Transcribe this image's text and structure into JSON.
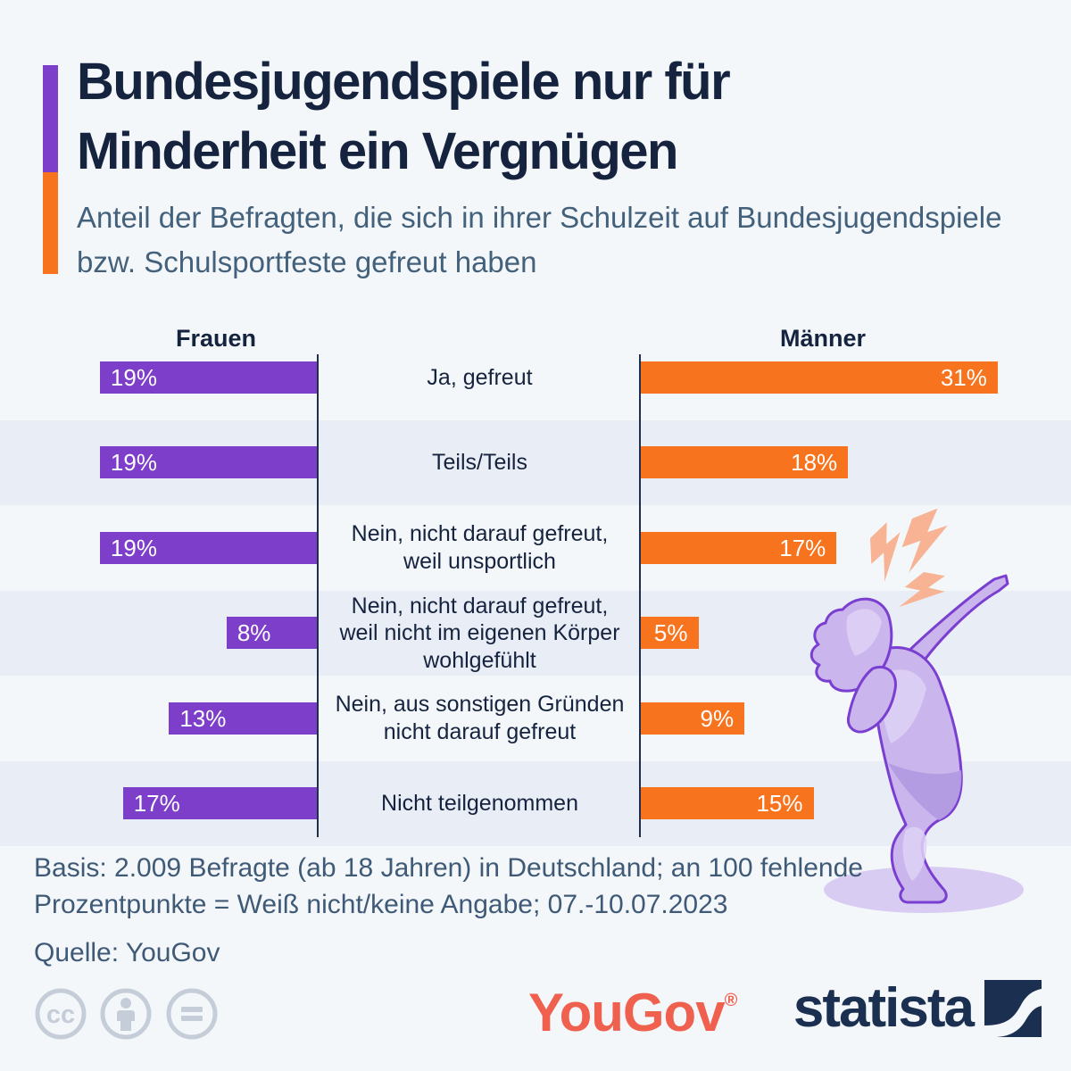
{
  "header": {
    "title": "Bundesjugendspiele nur für Minderheit ein Vergnügen",
    "subtitle": "Anteil der Befragten, die sich in ihrer Schulzeit auf Bundesjugendspiele bzw. Schulsportfeste gefreut haben"
  },
  "chart_data": {
    "type": "bar",
    "orientation": "horizontal-diverging",
    "categories": [
      "Ja, gefreut",
      "Teils/Teils",
      "Nein, nicht darauf gefreut, weil unsportlich",
      "Nein, nicht darauf gefreut, weil nicht im eigenen Körper wohlgefühlt",
      "Nein, aus sonstigen Gründen nicht darauf gefreut",
      "Nicht teilgenommen"
    ],
    "series": [
      {
        "name": "Frauen",
        "color": "#7d3ec9",
        "values": [
          19,
          19,
          19,
          8,
          13,
          17
        ]
      },
      {
        "name": "Männer",
        "color": "#f8731d",
        "values": [
          31,
          18,
          17,
          5,
          9,
          15
        ]
      }
    ],
    "unit": "%",
    "value_labels": "inside-bar-end",
    "row_stripes": [
      "#f4f7fa",
      "#e9edf6"
    ]
  },
  "footer": {
    "basis": "Basis: 2.009 Befragte (ab 18 Jahren) in Deutschland; an 100 fehlende Prozentpunkte = Weiß nicht/keine Angabe; 07.-10.07.2023",
    "quelle": "Quelle: YouGov"
  },
  "logos": {
    "license_icons": [
      "cc-icon",
      "attribution-person-icon",
      "equals-icon"
    ],
    "cc_text": "cc",
    "yougov": "YouGov",
    "registered": "®",
    "statista": "statista"
  },
  "illustration": {
    "name": "dabbing-person",
    "body_color": "#cab5ec",
    "outline_color": "#7a3fd0",
    "bolt_color": "#f7b394",
    "shadow_color": "#d8ccf2"
  },
  "colors": {
    "background": "#f4f7fa",
    "stripe": "#e9edf6",
    "title": "#15233f",
    "subtitle": "#44617c",
    "axis": "#1e2f4d",
    "frauen": "#7d3ec9",
    "maenner": "#f8731d",
    "yougov": "#f0604e",
    "statista": "#1b3050",
    "cc": "#c5ced8"
  }
}
